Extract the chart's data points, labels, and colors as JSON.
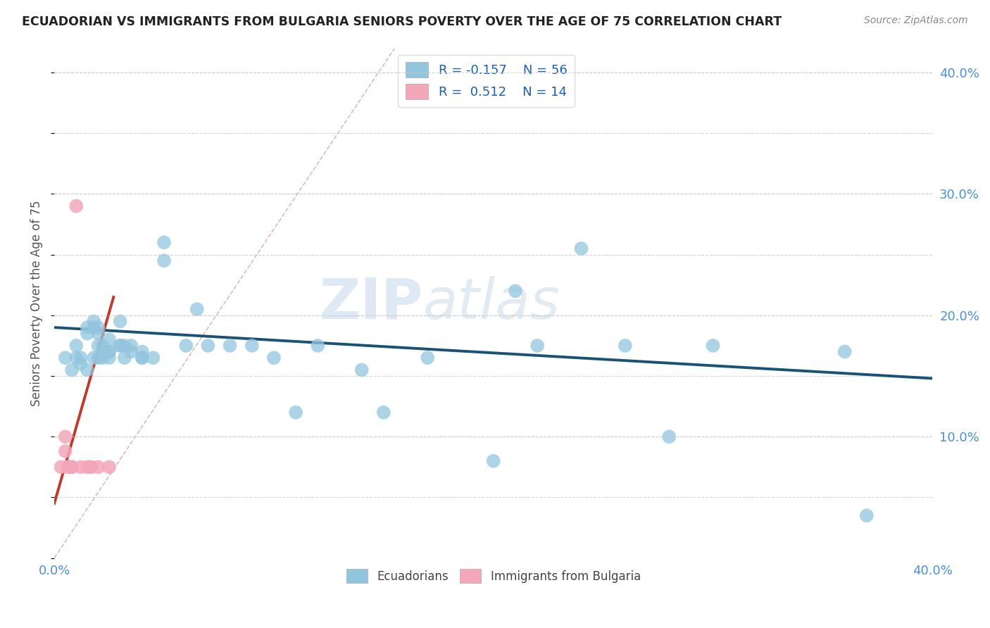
{
  "title": "ECUADORIAN VS IMMIGRANTS FROM BULGARIA SENIORS POVERTY OVER THE AGE OF 75 CORRELATION CHART",
  "source": "Source: ZipAtlas.com",
  "ylabel": "Seniors Poverty Over the Age of 75",
  "watermark_zip": "ZIP",
  "watermark_atlas": "atlas",
  "xlim": [
    0.0,
    0.4
  ],
  "ylim": [
    0.0,
    0.42
  ],
  "blue_R": -0.157,
  "blue_N": 56,
  "pink_R": 0.512,
  "pink_N": 14,
  "blue_color": "#92c5de",
  "pink_color": "#f4a7b9",
  "line_blue_color": "#1a5276",
  "line_pink_color": "#c0392b",
  "diag_line_color": "#ddbbbb",
  "background_color": "#ffffff",
  "grid_color": "#cccccc",
  "blue_scatter_x": [
    0.005,
    0.008,
    0.01,
    0.01,
    0.012,
    0.012,
    0.015,
    0.015,
    0.015,
    0.018,
    0.018,
    0.018,
    0.02,
    0.02,
    0.02,
    0.02,
    0.022,
    0.022,
    0.022,
    0.025,
    0.025,
    0.025,
    0.025,
    0.03,
    0.03,
    0.03,
    0.032,
    0.032,
    0.035,
    0.035,
    0.04,
    0.04,
    0.04,
    0.045,
    0.05,
    0.05,
    0.06,
    0.065,
    0.07,
    0.08,
    0.09,
    0.1,
    0.11,
    0.12,
    0.14,
    0.15,
    0.17,
    0.2,
    0.21,
    0.22,
    0.24,
    0.26,
    0.28,
    0.3,
    0.36,
    0.37
  ],
  "blue_scatter_y": [
    0.165,
    0.155,
    0.165,
    0.175,
    0.16,
    0.165,
    0.155,
    0.19,
    0.185,
    0.165,
    0.19,
    0.195,
    0.19,
    0.185,
    0.175,
    0.165,
    0.17,
    0.175,
    0.165,
    0.17,
    0.17,
    0.18,
    0.165,
    0.175,
    0.175,
    0.195,
    0.165,
    0.175,
    0.17,
    0.175,
    0.17,
    0.165,
    0.165,
    0.165,
    0.245,
    0.26,
    0.175,
    0.205,
    0.175,
    0.175,
    0.175,
    0.165,
    0.12,
    0.175,
    0.155,
    0.12,
    0.165,
    0.08,
    0.22,
    0.175,
    0.255,
    0.175,
    0.1,
    0.175,
    0.17,
    0.035
  ],
  "pink_scatter_x": [
    0.003,
    0.005,
    0.005,
    0.006,
    0.007,
    0.008,
    0.008,
    0.01,
    0.012,
    0.015,
    0.016,
    0.017,
    0.02,
    0.025
  ],
  "pink_scatter_y": [
    0.075,
    0.1,
    0.088,
    0.075,
    0.075,
    0.075,
    0.075,
    0.29,
    0.075,
    0.075,
    0.075,
    0.075,
    0.075,
    0.075
  ],
  "blue_line_x": [
    0.0,
    0.4
  ],
  "blue_line_y": [
    0.19,
    0.148
  ],
  "pink_line_x": [
    0.0,
    0.027
  ],
  "pink_line_y": [
    0.045,
    0.215
  ],
  "diag_line_x": [
    0.0,
    0.155
  ],
  "diag_line_y": [
    0.0,
    0.42
  ]
}
